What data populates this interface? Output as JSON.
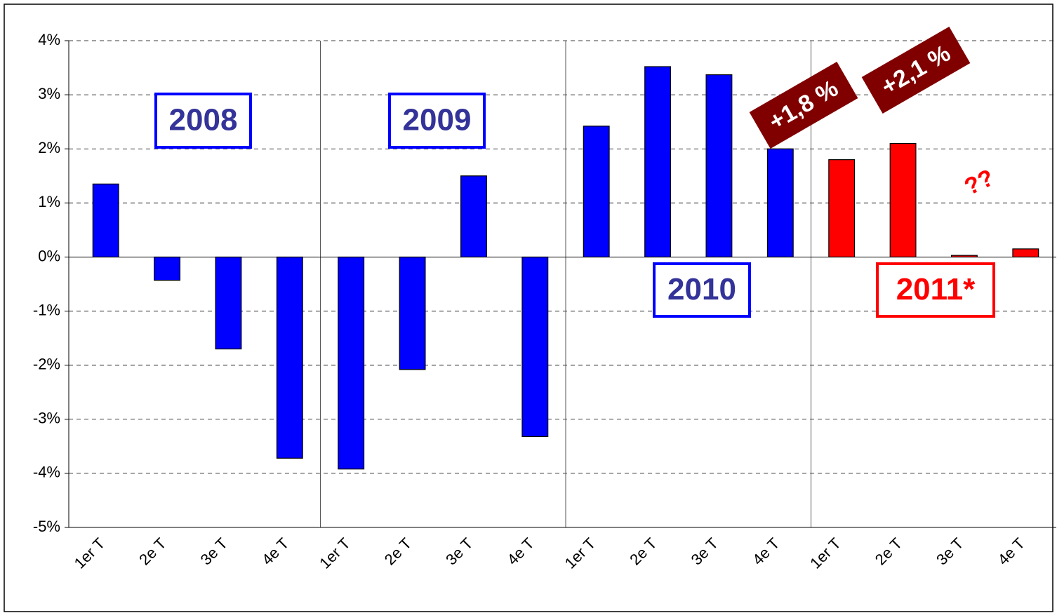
{
  "chart_data": {
    "type": "bar",
    "categories": [
      "1er T",
      "2e T",
      "3e T",
      "4e T",
      "1er T",
      "2e T",
      "3e T",
      "4e T",
      "1er T",
      "2e T",
      "3e T",
      "4e T",
      "1er T",
      "2e T",
      "3e T",
      "4e T"
    ],
    "values": [
      1.35,
      -0.43,
      -1.7,
      -3.72,
      -3.92,
      -2.08,
      1.5,
      -3.32,
      2.42,
      3.52,
      3.37,
      2.0,
      1.8,
      2.1,
      0.03,
      0.15
    ],
    "colors": [
      "#0000ff",
      "#0000ff",
      "#0000ff",
      "#0000ff",
      "#0000ff",
      "#0000ff",
      "#0000ff",
      "#0000ff",
      "#0000ff",
      "#0000ff",
      "#0000ff",
      "#0000ff",
      "#ff0000",
      "#ff0000",
      "#ff0000",
      "#ff0000"
    ],
    "ylim": [
      -5,
      4
    ],
    "yticks": [
      {
        "value": -5,
        "label": "-5%"
      },
      {
        "value": -4,
        "label": "-4%"
      },
      {
        "value": -3,
        "label": "-3%"
      },
      {
        "value": -2,
        "label": "-2%"
      },
      {
        "value": -1,
        "label": "-1%"
      },
      {
        "value": 0,
        "label": "0%"
      },
      {
        "value": 1,
        "label": "1%"
      },
      {
        "value": 2,
        "label": "2%"
      },
      {
        "value": 3,
        "label": "3%"
      },
      {
        "value": 4,
        "label": "4%"
      }
    ],
    "grid": true,
    "annotations": [
      "2008",
      "2009",
      "2010",
      "2011*",
      "+1,8 %",
      "+2,1 %",
      "??"
    ]
  }
}
